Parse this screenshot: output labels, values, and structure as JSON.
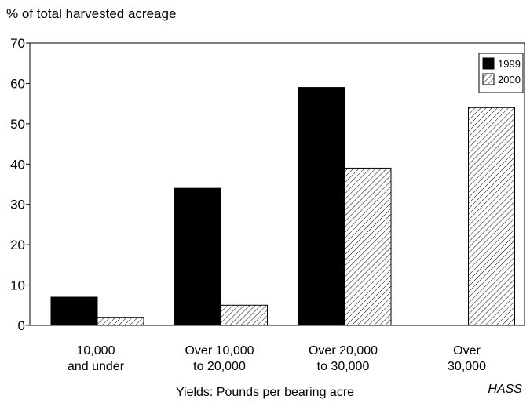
{
  "chart_data": {
    "type": "bar",
    "ylabel": "% of total harvested acreage",
    "xlabel": "Yields: Pounds per bearing acre",
    "source": "HASS",
    "categories": [
      [
        "10,000",
        "and under"
      ],
      [
        "Over 10,000",
        "to 20,000"
      ],
      [
        "Over 20,000",
        "to 30,000"
      ],
      [
        "Over",
        "30,000"
      ]
    ],
    "series": [
      {
        "name": "1999",
        "values": [
          7,
          34,
          59,
          0
        ],
        "color": "#000000",
        "fill": "solid"
      },
      {
        "name": "2000",
        "values": [
          2,
          5,
          39,
          54
        ],
        "color": "#000000",
        "fill": "hatched"
      }
    ],
    "ylim": [
      0,
      70
    ],
    "yticks": [
      0,
      10,
      20,
      30,
      40,
      50,
      60,
      70
    ],
    "grid": false,
    "legend_position": "top-right"
  }
}
